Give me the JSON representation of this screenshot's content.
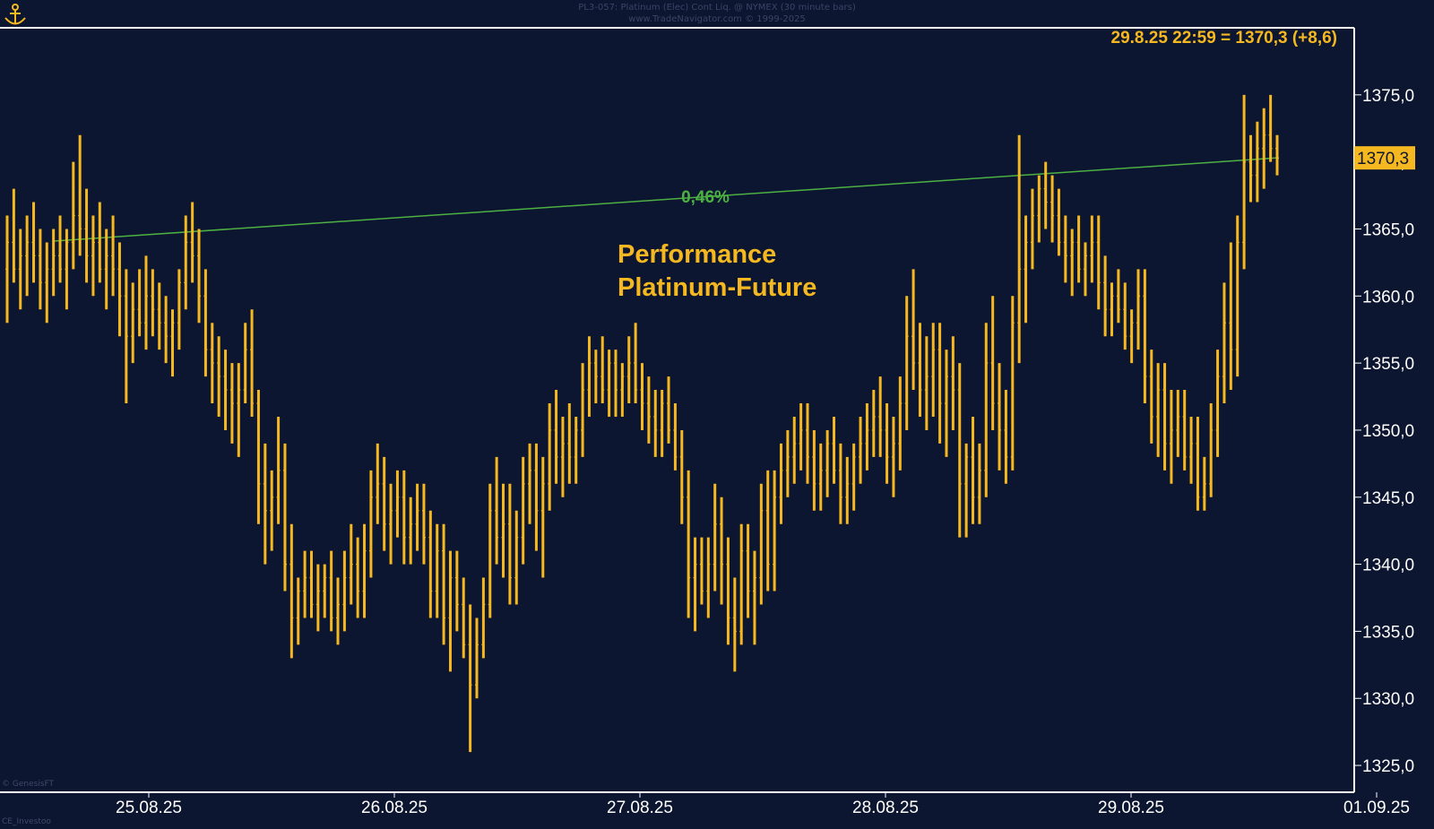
{
  "header": {
    "line1": "PL3-057: Platinum (Elec) Cont Liq. @ NYMEX (30 minute bars)",
    "line2": "www.TradeNavigator.com © 1999-2025"
  },
  "corner": {
    "bottom_left_1": "© GenesisFT",
    "bottom_left_2": "CE_Investoo"
  },
  "colors": {
    "background": "#0d1630",
    "bars": "#f5b820",
    "trendline": "#4cb042",
    "axis_text": "#ffffff",
    "frame": "#ffffff",
    "label_bg": "#f5b820"
  },
  "chart_data": {
    "type": "bar",
    "subtype": "ohlc-30min",
    "title": "Performance Platinum-Future",
    "title_lines": [
      "Performance",
      "Platinum-Future"
    ],
    "last_label": "29.8.25 22:59 = 1370,3 (+8,6)",
    "last_price": 1370.3,
    "last_price_label": "1370,3",
    "ylim": [
      1323,
      1380
    ],
    "y_ticks": [
      1325,
      1330,
      1335,
      1340,
      1345,
      1350,
      1355,
      1360,
      1365,
      1370,
      1375
    ],
    "y_tick_labels": [
      "1325,0",
      "1330,0",
      "1335,0",
      "1340,0",
      "1345,0",
      "1350,0",
      "1355,0",
      "1360,0",
      "1365,0",
      "1370,0",
      "1375,0"
    ],
    "x_tick_labels": [
      "25.08.25",
      "26.08.25",
      "27.08.25",
      "28.08.25",
      "29.08.25",
      "01.09.25"
    ],
    "performance_line": {
      "label": "0,46%",
      "start": 1364.1,
      "end": 1370.3
    },
    "bars": [
      [
        1362,
        1366,
        1358,
        1364
      ],
      [
        1364,
        1368,
        1361,
        1362
      ],
      [
        1362,
        1365,
        1359,
        1363
      ],
      [
        1363,
        1366,
        1360,
        1364
      ],
      [
        1364,
        1367,
        1361,
        1363
      ],
      [
        1363,
        1365,
        1359,
        1361
      ],
      [
        1361,
        1364,
        1358,
        1362
      ],
      [
        1362,
        1365,
        1360,
        1363
      ],
      [
        1363,
        1366,
        1361,
        1362
      ],
      [
        1362,
        1365,
        1359,
        1364
      ],
      [
        1364,
        1370,
        1362,
        1366
      ],
      [
        1366,
        1372,
        1363,
        1365
      ],
      [
        1365,
        1368,
        1361,
        1363
      ],
      [
        1363,
        1366,
        1360,
        1364
      ],
      [
        1364,
        1367,
        1361,
        1362
      ],
      [
        1362,
        1365,
        1359,
        1363
      ],
      [
        1363,
        1366,
        1360,
        1362
      ],
      [
        1362,
        1364,
        1357,
        1360
      ],
      [
        1360,
        1362,
        1352,
        1357
      ],
      [
        1357,
        1361,
        1355,
        1359
      ],
      [
        1359,
        1362,
        1357,
        1358
      ],
      [
        1358,
        1363,
        1356,
        1360
      ],
      [
        1360,
        1362,
        1357,
        1359
      ],
      [
        1359,
        1361,
        1356,
        1358
      ],
      [
        1358,
        1360,
        1355,
        1357
      ],
      [
        1357,
        1359,
        1354,
        1358
      ],
      [
        1358,
        1362,
        1356,
        1361
      ],
      [
        1361,
        1366,
        1359,
        1364
      ],
      [
        1364,
        1367,
        1361,
        1363
      ],
      [
        1363,
        1365,
        1358,
        1360
      ],
      [
        1360,
        1362,
        1354,
        1356
      ],
      [
        1356,
        1358,
        1352,
        1355
      ],
      [
        1355,
        1357,
        1351,
        1354
      ],
      [
        1354,
        1356,
        1350,
        1353
      ],
      [
        1353,
        1355,
        1349,
        1352
      ],
      [
        1352,
        1355,
        1348,
        1353
      ],
      [
        1353,
        1358,
        1352,
        1356
      ],
      [
        1356,
        1359,
        1351,
        1352
      ],
      [
        1352,
        1353,
        1343,
        1346
      ],
      [
        1346,
        1349,
        1340,
        1344
      ],
      [
        1344,
        1347,
        1341,
        1345
      ],
      [
        1345,
        1351,
        1343,
        1347
      ],
      [
        1347,
        1349,
        1338,
        1340
      ],
      [
        1340,
        1343,
        1333,
        1336
      ],
      [
        1336,
        1339,
        1334,
        1338
      ],
      [
        1338,
        1341,
        1336,
        1339
      ],
      [
        1339,
        1341,
        1336,
        1337
      ],
      [
        1337,
        1340,
        1335,
        1338
      ],
      [
        1338,
        1340,
        1336,
        1339
      ],
      [
        1339,
        1341,
        1335,
        1336
      ],
      [
        1336,
        1339,
        1334,
        1337
      ],
      [
        1337,
        1341,
        1335,
        1339
      ],
      [
        1339,
        1343,
        1337,
        1340
      ],
      [
        1340,
        1342,
        1336,
        1338
      ],
      [
        1338,
        1343,
        1336,
        1341
      ],
      [
        1341,
        1347,
        1339,
        1345
      ],
      [
        1345,
        1349,
        1343,
        1346
      ],
      [
        1346,
        1348,
        1341,
        1343
      ],
      [
        1343,
        1346,
        1340,
        1344
      ],
      [
        1344,
        1347,
        1342,
        1345
      ],
      [
        1345,
        1347,
        1340,
        1342
      ],
      [
        1342,
        1345,
        1340,
        1343
      ],
      [
        1343,
        1346,
        1341,
        1344
      ],
      [
        1344,
        1346,
        1340,
        1342
      ],
      [
        1342,
        1344,
        1336,
        1338
      ],
      [
        1338,
        1343,
        1336,
        1341
      ],
      [
        1341,
        1343,
        1334,
        1336
      ],
      [
        1336,
        1341,
        1332,
        1339
      ],
      [
        1339,
        1341,
        1335,
        1337
      ],
      [
        1337,
        1339,
        1333,
        1334
      ],
      [
        1334,
        1337,
        1326,
        1331
      ],
      [
        1331,
        1336,
        1330,
        1334
      ],
      [
        1334,
        1339,
        1333,
        1337
      ],
      [
        1337,
        1346,
        1336,
        1344
      ],
      [
        1344,
        1348,
        1340,
        1342
      ],
      [
        1342,
        1346,
        1339,
        1343
      ],
      [
        1343,
        1346,
        1337,
        1339
      ],
      [
        1339,
        1344,
        1337,
        1342
      ],
      [
        1342,
        1348,
        1340,
        1346
      ],
      [
        1346,
        1349,
        1343,
        1347
      ],
      [
        1347,
        1349,
        1341,
        1344
      ],
      [
        1344,
        1348,
        1339,
        1346
      ],
      [
        1346,
        1352,
        1344,
        1350
      ],
      [
        1350,
        1353,
        1346,
        1348
      ],
      [
        1348,
        1351,
        1345,
        1349
      ],
      [
        1349,
        1352,
        1346,
        1348
      ],
      [
        1348,
        1351,
        1346,
        1350
      ],
      [
        1350,
        1355,
        1348,
        1353
      ],
      [
        1353,
        1357,
        1351,
        1355
      ],
      [
        1355,
        1356,
        1352,
        1354
      ],
      [
        1354,
        1357,
        1352,
        1353
      ],
      [
        1353,
        1356,
        1351,
        1355
      ],
      [
        1355,
        1356,
        1351,
        1353
      ],
      [
        1353,
        1355,
        1351,
        1354
      ],
      [
        1354,
        1357,
        1352,
        1355
      ],
      [
        1355,
        1358,
        1352,
        1353
      ],
      [
        1353,
        1355,
        1350,
        1352
      ],
      [
        1352,
        1354,
        1349,
        1351
      ],
      [
        1351,
        1353,
        1348,
        1350
      ],
      [
        1350,
        1353,
        1348,
        1352
      ],
      [
        1352,
        1354,
        1349,
        1350
      ],
      [
        1350,
        1352,
        1347,
        1348
      ],
      [
        1348,
        1350,
        1343,
        1345
      ],
      [
        1345,
        1347,
        1336,
        1339
      ],
      [
        1339,
        1342,
        1335,
        1340
      ],
      [
        1340,
        1342,
        1337,
        1338
      ],
      [
        1338,
        1342,
        1336,
        1340
      ],
      [
        1340,
        1346,
        1338,
        1343
      ],
      [
        1343,
        1345,
        1337,
        1340
      ],
      [
        1340,
        1342,
        1334,
        1336
      ],
      [
        1336,
        1339,
        1332,
        1335
      ],
      [
        1335,
        1343,
        1334,
        1341
      ],
      [
        1341,
        1343,
        1336,
        1338
      ],
      [
        1338,
        1341,
        1334,
        1339
      ],
      [
        1339,
        1346,
        1337,
        1344
      ],
      [
        1344,
        1347,
        1338,
        1340
      ],
      [
        1340,
        1347,
        1338,
        1345
      ],
      [
        1345,
        1349,
        1343,
        1347
      ],
      [
        1347,
        1350,
        1345,
        1348
      ],
      [
        1348,
        1351,
        1346,
        1349
      ],
      [
        1349,
        1352,
        1347,
        1350
      ],
      [
        1350,
        1352,
        1346,
        1348
      ],
      [
        1348,
        1350,
        1344,
        1346
      ],
      [
        1346,
        1349,
        1344,
        1347
      ],
      [
        1347,
        1350,
        1345,
        1349
      ],
      [
        1349,
        1351,
        1346,
        1347
      ],
      [
        1347,
        1349,
        1343,
        1345
      ],
      [
        1345,
        1348,
        1343,
        1346
      ],
      [
        1346,
        1349,
        1344,
        1348
      ],
      [
        1348,
        1351,
        1346,
        1349
      ],
      [
        1349,
        1352,
        1347,
        1350
      ],
      [
        1350,
        1353,
        1348,
        1351
      ],
      [
        1351,
        1354,
        1348,
        1350
      ],
      [
        1350,
        1352,
        1346,
        1348
      ],
      [
        1348,
        1351,
        1345,
        1349
      ],
      [
        1349,
        1354,
        1347,
        1352
      ],
      [
        1352,
        1360,
        1350,
        1357
      ],
      [
        1357,
        1362,
        1353,
        1355
      ],
      [
        1355,
        1358,
        1351,
        1353
      ],
      [
        1353,
        1357,
        1350,
        1354
      ],
      [
        1354,
        1358,
        1351,
        1356
      ],
      [
        1356,
        1358,
        1349,
        1352
      ],
      [
        1352,
        1356,
        1348,
        1354
      ],
      [
        1354,
        1357,
        1350,
        1353
      ],
      [
        1353,
        1355,
        1342,
        1346
      ],
      [
        1346,
        1349,
        1342,
        1348
      ],
      [
        1348,
        1351,
        1343,
        1345
      ],
      [
        1345,
        1349,
        1343,
        1347
      ],
      [
        1347,
        1358,
        1345,
        1355
      ],
      [
        1355,
        1360,
        1350,
        1352
      ],
      [
        1352,
        1355,
        1347,
        1350
      ],
      [
        1350,
        1353,
        1346,
        1348
      ],
      [
        1348,
        1360,
        1347,
        1358
      ],
      [
        1358,
        1372,
        1355,
        1362
      ],
      [
        1362,
        1366,
        1358,
        1364
      ],
      [
        1364,
        1368,
        1362,
        1366
      ],
      [
        1366,
        1369,
        1364,
        1368
      ],
      [
        1368,
        1370,
        1365,
        1367
      ],
      [
        1367,
        1369,
        1364,
        1366
      ],
      [
        1366,
        1368,
        1363,
        1364
      ],
      [
        1364,
        1366,
        1361,
        1363
      ],
      [
        1363,
        1365,
        1360,
        1364
      ],
      [
        1364,
        1366,
        1361,
        1362
      ],
      [
        1362,
        1364,
        1360,
        1363
      ],
      [
        1363,
        1366,
        1361,
        1364
      ],
      [
        1364,
        1366,
        1359,
        1361
      ],
      [
        1361,
        1363,
        1357,
        1359
      ],
      [
        1359,
        1361,
        1357,
        1360
      ],
      [
        1360,
        1362,
        1358,
        1359
      ],
      [
        1359,
        1361,
        1356,
        1357
      ],
      [
        1357,
        1359,
        1355,
        1358
      ],
      [
        1358,
        1362,
        1356,
        1360
      ],
      [
        1360,
        1362,
        1352,
        1354
      ],
      [
        1354,
        1356,
        1349,
        1351
      ],
      [
        1351,
        1355,
        1348,
        1353
      ],
      [
        1353,
        1355,
        1347,
        1349
      ],
      [
        1349,
        1353,
        1346,
        1350
      ],
      [
        1350,
        1353,
        1348,
        1351
      ],
      [
        1351,
        1353,
        1347,
        1348
      ],
      [
        1348,
        1351,
        1346,
        1349
      ],
      [
        1349,
        1351,
        1344,
        1345
      ],
      [
        1345,
        1348,
        1344,
        1346
      ],
      [
        1346,
        1352,
        1345,
        1350
      ],
      [
        1350,
        1356,
        1348,
        1354
      ],
      [
        1354,
        1361,
        1352,
        1358
      ],
      [
        1358,
        1364,
        1353,
        1356
      ],
      [
        1356,
        1366,
        1354,
        1364
      ],
      [
        1364,
        1375,
        1362,
        1370
      ],
      [
        1370,
        1372,
        1367,
        1369
      ],
      [
        1369,
        1373,
        1367,
        1371
      ],
      [
        1371,
        1374,
        1368,
        1372
      ],
      [
        1372,
        1375,
        1370,
        1371
      ],
      [
        1371,
        1372,
        1369,
        1370.3
      ]
    ]
  }
}
